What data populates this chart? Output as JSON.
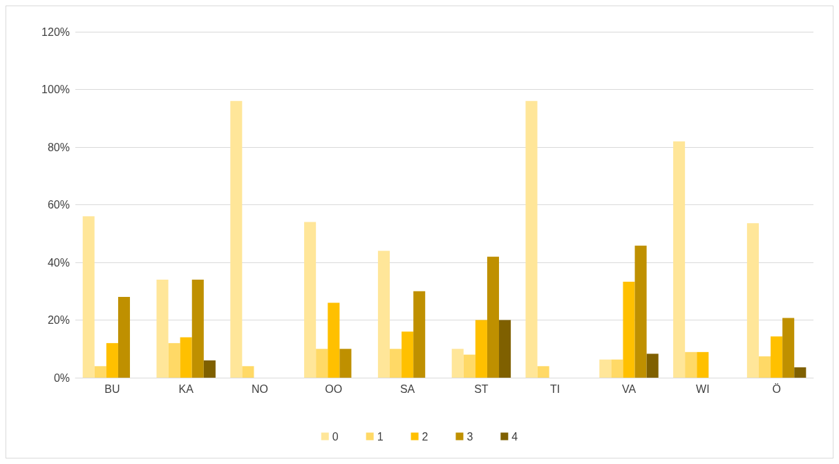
{
  "chart_data": {
    "type": "bar",
    "categories": [
      "BU",
      "KA",
      "NO",
      "OO",
      "SA",
      "ST",
      "TI",
      "VA",
      "WI",
      "Ö"
    ],
    "series": [
      {
        "name": "0",
        "color": "#ffe699",
        "values": [
          56,
          34,
          96,
          54,
          44,
          10,
          96,
          6.3,
          82,
          53.6
        ]
      },
      {
        "name": "1",
        "color": "#ffd966",
        "values": [
          4,
          12,
          4,
          10,
          10,
          8,
          4,
          6.3,
          8.9,
          7.4
        ]
      },
      {
        "name": "2",
        "color": "#ffc000",
        "values": [
          12,
          14,
          0,
          26,
          16,
          20,
          0,
          33.3,
          8.9,
          14.3
        ]
      },
      {
        "name": "3",
        "color": "#bf9000",
        "values": [
          28,
          34,
          0,
          10,
          30,
          42,
          0,
          45.8,
          0,
          20.7
        ]
      },
      {
        "name": "4",
        "color": "#7f6000",
        "values": [
          0,
          6,
          0,
          0,
          0,
          20,
          0,
          8.3,
          0,
          3.6
        ]
      }
    ],
    "ylim": [
      0,
      120
    ],
    "yticks": [
      {
        "value": 0,
        "label": "0%"
      },
      {
        "value": 20,
        "label": "20%"
      },
      {
        "value": 40,
        "label": "40%"
      },
      {
        "value": 60,
        "label": "60%"
      },
      {
        "value": 80,
        "label": "80%"
      },
      {
        "value": 100,
        "label": "100%"
      },
      {
        "value": 120,
        "label": "120%"
      }
    ],
    "grid": "y",
    "legend": "bottom"
  }
}
